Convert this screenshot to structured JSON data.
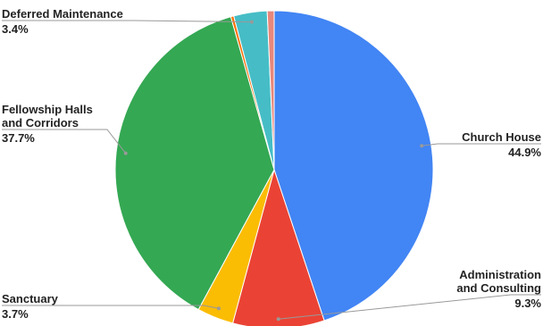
{
  "chart_data": {
    "type": "pie",
    "title": "",
    "start_angle_deg": 0,
    "direction": "clockwise",
    "slices": [
      {
        "label_lines": [
          "Church House"
        ],
        "pct_text": "44.9%",
        "value": 44.9,
        "color": "#4285F4"
      },
      {
        "label_lines": [
          "Administration",
          "and Consulting"
        ],
        "pct_text": "9.3%",
        "value": 9.3,
        "color": "#EA4335"
      },
      {
        "label_lines": [
          "Sanctuary"
        ],
        "pct_text": "3.7%",
        "value": 3.7,
        "color": "#FBBC04"
      },
      {
        "label_lines": [
          "Fellowship Halls",
          "and Corridors"
        ],
        "pct_text": "37.7%",
        "value": 37.7,
        "color": "#34A853"
      },
      {
        "label_lines": [],
        "pct_text": "",
        "value": 0.3,
        "color": "#FF6D01"
      },
      {
        "label_lines": [
          "Deferred Maintenance"
        ],
        "pct_text": "3.4%",
        "value": 3.4,
        "color": "#46BDC6"
      },
      {
        "label_lines": [],
        "pct_text": "",
        "value": 0.7,
        "color": "#E8877B"
      }
    ]
  }
}
